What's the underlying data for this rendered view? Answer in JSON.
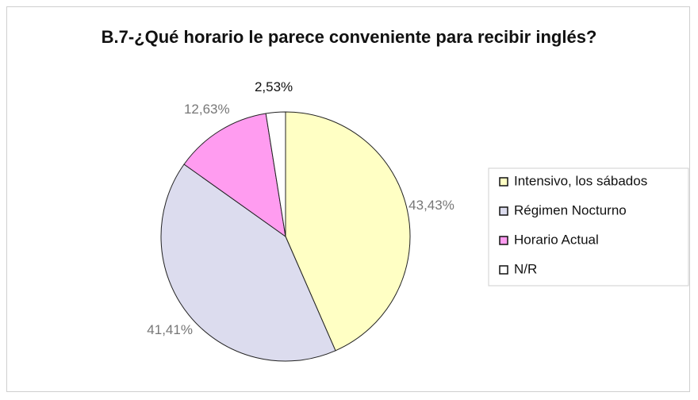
{
  "chart_data": {
    "type": "pie",
    "title": "B.7-¿Qué horario le parece conveniente para recibir inglés?",
    "categories": [
      "Intensivo, los sábados",
      "Régimen Nocturno",
      "Horario Actual",
      "N/R"
    ],
    "values": [
      43.43,
      41.41,
      12.63,
      2.53
    ],
    "value_labels": [
      "43,43%",
      "41,41%",
      "12,63%",
      "2,53%"
    ],
    "colors": [
      "#ffffc4",
      "#dcdcee",
      "#ff9cf0",
      "#ffffff"
    ],
    "legend": "right"
  }
}
